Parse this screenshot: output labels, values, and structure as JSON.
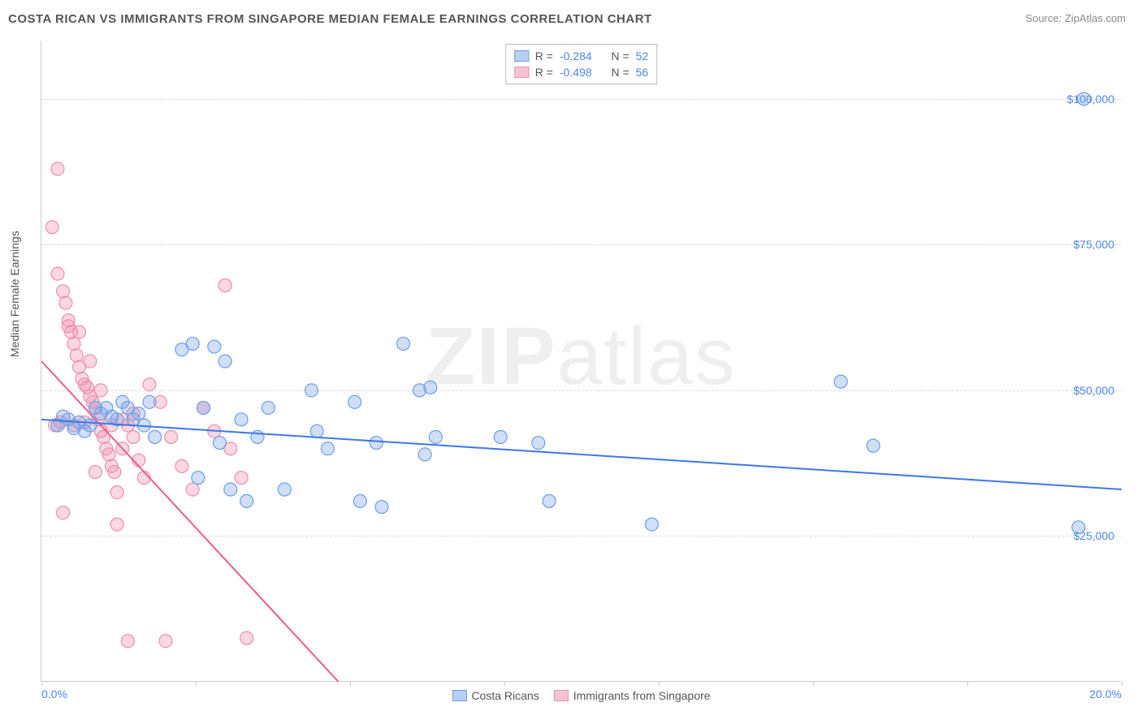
{
  "title": "COSTA RICAN VS IMMIGRANTS FROM SINGAPORE MEDIAN FEMALE EARNINGS CORRELATION CHART",
  "source_label": "Source:",
  "source_name": "ZipAtlas.com",
  "ylabel": "Median Female Earnings",
  "watermark_bold": "ZIP",
  "watermark_rest": "atlas",
  "chart": {
    "type": "scatter",
    "background_color": "#ffffff",
    "grid_color": "#dddddd",
    "axis_color": "#cccccc",
    "tick_label_color": "#4a86e8",
    "text_color": "#555555",
    "title_fontsize": 15,
    "label_fontsize": 14,
    "xlim": [
      0,
      20
    ],
    "ylim": [
      0,
      110000
    ],
    "yticks": [
      25000,
      50000,
      75000,
      100000
    ],
    "ytick_labels": [
      "$25,000",
      "$50,000",
      "$75,000",
      "$100,000"
    ],
    "xticks": [
      0,
      2.86,
      5.71,
      8.57,
      11.43,
      14.29,
      17.14,
      20
    ],
    "xtick_labels_shown": {
      "0": "0.0%",
      "20": "20.0%"
    },
    "marker_radius": 8,
    "marker_stroke_width": 1.2,
    "trend_line_width": 2
  },
  "series": [
    {
      "key": "costa_ricans",
      "label": "Costa Ricans",
      "fill_color": "rgba(120,160,230,0.35)",
      "stroke_color": "#6d9fe8",
      "swatch_fill": "#b8cef2",
      "swatch_border": "#6d9fe8",
      "line_color": "#3b78e7",
      "R": "-0.284",
      "N": "52",
      "trend": {
        "x1": 0,
        "y1": 45000,
        "x2": 20,
        "y2": 33000
      },
      "points": [
        [
          0.3,
          44000
        ],
        [
          0.5,
          45000
        ],
        [
          0.6,
          43500
        ],
        [
          0.7,
          44500
        ],
        [
          0.8,
          43000
        ],
        [
          0.9,
          44000
        ],
        [
          1.0,
          47000
        ],
        [
          1.1,
          46000
        ],
        [
          1.2,
          47000
        ],
        [
          1.3,
          45500
        ],
        [
          1.4,
          45000
        ],
        [
          1.5,
          48000
        ],
        [
          1.6,
          47000
        ],
        [
          1.7,
          45000
        ],
        [
          1.8,
          46000
        ],
        [
          2.0,
          48000
        ],
        [
          2.1,
          42000
        ],
        [
          2.6,
          57000
        ],
        [
          2.8,
          58000
        ],
        [
          2.9,
          35000
        ],
        [
          3.0,
          47000
        ],
        [
          3.2,
          57500
        ],
        [
          3.3,
          41000
        ],
        [
          3.4,
          55000
        ],
        [
          3.5,
          33000
        ],
        [
          3.7,
          45000
        ],
        [
          3.8,
          31000
        ],
        [
          4.0,
          42000
        ],
        [
          4.2,
          47000
        ],
        [
          4.5,
          33000
        ],
        [
          5.0,
          50000
        ],
        [
          5.1,
          43000
        ],
        [
          5.3,
          40000
        ],
        [
          5.8,
          48000
        ],
        [
          5.9,
          31000
        ],
        [
          6.2,
          41000
        ],
        [
          6.3,
          30000
        ],
        [
          6.7,
          58000
        ],
        [
          7.0,
          50000
        ],
        [
          7.1,
          39000
        ],
        [
          7.2,
          50500
        ],
        [
          7.3,
          42000
        ],
        [
          8.5,
          42000
        ],
        [
          9.2,
          41000
        ],
        [
          9.4,
          31000
        ],
        [
          11.3,
          27000
        ],
        [
          14.8,
          51500
        ],
        [
          15.4,
          40500
        ],
        [
          19.2,
          26500
        ],
        [
          19.3,
          100000
        ],
        [
          0.4,
          45500
        ],
        [
          1.9,
          44000
        ]
      ]
    },
    {
      "key": "immigrants_singapore",
      "label": "Immigrants from Singapore",
      "fill_color": "rgba(240,140,170,0.35)",
      "stroke_color": "#ec8fb0",
      "swatch_fill": "#f5c3d4",
      "swatch_border": "#ec8fb0",
      "line_color": "#e75d8f",
      "R": "-0.498",
      "N": "56",
      "trend": {
        "x1": 0,
        "y1": 55000,
        "x2": 5.5,
        "y2": 0
      },
      "points": [
        [
          0.2,
          78000
        ],
        [
          0.3,
          70000
        ],
        [
          0.4,
          67000
        ],
        [
          0.45,
          65000
        ],
        [
          0.5,
          61000
        ],
        [
          0.55,
          60000
        ],
        [
          0.6,
          58000
        ],
        [
          0.65,
          56000
        ],
        [
          0.7,
          54000
        ],
        [
          0.75,
          52000
        ],
        [
          0.8,
          51000
        ],
        [
          0.85,
          50500
        ],
        [
          0.9,
          49000
        ],
        [
          0.95,
          48000
        ],
        [
          1.0,
          47000
        ],
        [
          1.05,
          45000
        ],
        [
          1.1,
          43000
        ],
        [
          1.15,
          42000
        ],
        [
          1.2,
          40000
        ],
        [
          1.25,
          39000
        ],
        [
          1.3,
          37000
        ],
        [
          1.35,
          36000
        ],
        [
          1.4,
          32500
        ],
        [
          1.5,
          45000
        ],
        [
          1.6,
          44000
        ],
        [
          1.7,
          42000
        ],
        [
          1.8,
          38000
        ],
        [
          1.9,
          35000
        ],
        [
          2.0,
          51000
        ],
        [
          2.2,
          48000
        ],
        [
          2.4,
          42000
        ],
        [
          2.6,
          37000
        ],
        [
          2.8,
          33000
        ],
        [
          3.0,
          47000
        ],
        [
          3.2,
          43000
        ],
        [
          3.4,
          68000
        ],
        [
          3.5,
          40000
        ],
        [
          3.7,
          35000
        ],
        [
          3.8,
          7500
        ],
        [
          0.3,
          88000
        ],
        [
          0.5,
          62000
        ],
        [
          0.7,
          60000
        ],
        [
          0.9,
          55000
        ],
        [
          1.1,
          50000
        ],
        [
          1.3,
          44000
        ],
        [
          1.5,
          40000
        ],
        [
          1.7,
          46000
        ],
        [
          0.4,
          29000
        ],
        [
          1.0,
          36000
        ],
        [
          1.4,
          27000
        ],
        [
          1.6,
          7000
        ],
        [
          2.3,
          7000
        ],
        [
          0.35,
          44500
        ],
        [
          0.6,
          44000
        ],
        [
          0.8,
          44500
        ],
        [
          0.25,
          44000
        ]
      ]
    }
  ],
  "legend_stat_labels": {
    "R": "R =",
    "N": "N ="
  }
}
